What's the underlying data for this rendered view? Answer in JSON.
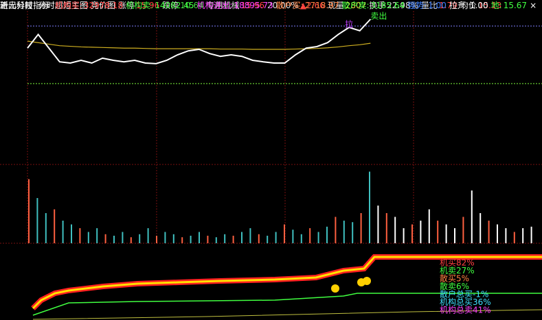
{
  "header": {
    "stock": "新元科技",
    "tabs": [
      "分时超短主图",
      "竞价图"
    ],
    "quote": [
      {
        "label": "涨停",
        "value": "15.96",
        "color": "#ff4040"
      },
      {
        "label": "跌停",
        "value": "10.64",
        "color": "#40d040"
      },
      {
        "label": "专用机械",
        "value": "15.96",
        "color": "#ff4040"
      },
      {
        "label": "20.00%",
        "value": "▲2.66",
        "color": "#ff4040"
      },
      {
        "label": "现量",
        "value": "2807",
        "color": "#e0e040"
      },
      {
        "label": "换手",
        "value": "22.98%",
        "color": "#e0e0e0"
      },
      {
        "label": "量比",
        "value": "1.79",
        "color": "#ff4040"
      },
      {
        "label": "均价",
        "value": "15.13",
        "color": "#ff4040"
      }
    ]
  },
  "price_chart": {
    "ylim": [
      11.0,
      16.4
    ],
    "price": [
      14.82,
      15.27,
      14.82,
      14.37,
      14.33,
      14.42,
      14.33,
      14.49,
      14.42,
      14.37,
      14.42,
      14.33,
      14.31,
      14.42,
      14.6,
      14.73,
      14.78,
      14.64,
      14.55,
      14.6,
      14.55,
      14.42,
      14.37,
      14.33,
      14.33,
      14.6,
      14.82,
      14.87,
      15.0,
      15.27,
      15.5,
      15.39,
      15.77
    ],
    "average": [
      15.05,
      15.0,
      14.95,
      14.9,
      14.88,
      14.86,
      14.85,
      14.84,
      14.83,
      14.82,
      14.82,
      14.81,
      14.8,
      14.8,
      14.8,
      14.8,
      14.8,
      14.8,
      14.79,
      14.79,
      14.79,
      14.78,
      14.78,
      14.78,
      14.78,
      14.79,
      14.8,
      14.81,
      14.83,
      14.86,
      14.9,
      14.93,
      14.98
    ],
    "markers": [
      {
        "text": "拉",
        "color": "#c040ff"
      },
      {
        "text": "卖出",
        "color": "#40ff40"
      }
    ],
    "volume_ylim": [
      0,
      100
    ],
    "volume": [
      85,
      60,
      40,
      45,
      30,
      25,
      20,
      15,
      20,
      12,
      10,
      15,
      8,
      12,
      20,
      10,
      15,
      12,
      8,
      10,
      15,
      10,
      8,
      12,
      10,
      15,
      20,
      12,
      10,
      15,
      25,
      18,
      12,
      20,
      15,
      22,
      35,
      30,
      28,
      40,
      95,
      50,
      40,
      35,
      20,
      25,
      30,
      45,
      30,
      25,
      20,
      35,
      70,
      40,
      30,
      25,
      20,
      15,
      20,
      22
    ]
  },
  "indicator": {
    "title": "进出分时指标",
    "items": [
      {
        "label": "机构买:",
        "value": "32978.18",
        "color": "#ff4040"
      },
      {
        "label": "机构卖:",
        "value": "14082.45",
        "color": "#40ff40"
      },
      {
        "label": "机构进出:",
        "value": "18895.73",
        "color": "#ff40ff"
      },
      {
        "label": "散户买:",
        "value": "2718.97",
        "color": "#ff8040"
      },
      {
        "label": "散户卖:",
        "value": "3185.64",
        "color": "#40ff40"
      },
      {
        "label": "强势:",
        "value": "1.00",
        "color": "#4080ff"
      },
      {
        "label": "拉升:",
        "value": "1.00",
        "color": "#ffffff"
      },
      {
        "label": "地:",
        "value": "15.67",
        "color": "#40ff40"
      }
    ],
    "close": "×",
    "notes": [
      {
        "text": "机买82%",
        "color": "#ff4040"
      },
      {
        "text": "机卖27%",
        "color": "#40ff40"
      },
      {
        "text": "散买5%",
        "color": "#ff8040"
      },
      {
        "text": "散卖6%",
        "color": "#40ff40"
      },
      {
        "text": "散户总买-1%",
        "color": "#40e0ff"
      },
      {
        "text": "机构总买36%",
        "color": "#40e0ff"
      },
      {
        "text": "机构总卖41%",
        "color": "#ff40ff"
      }
    ]
  }
}
